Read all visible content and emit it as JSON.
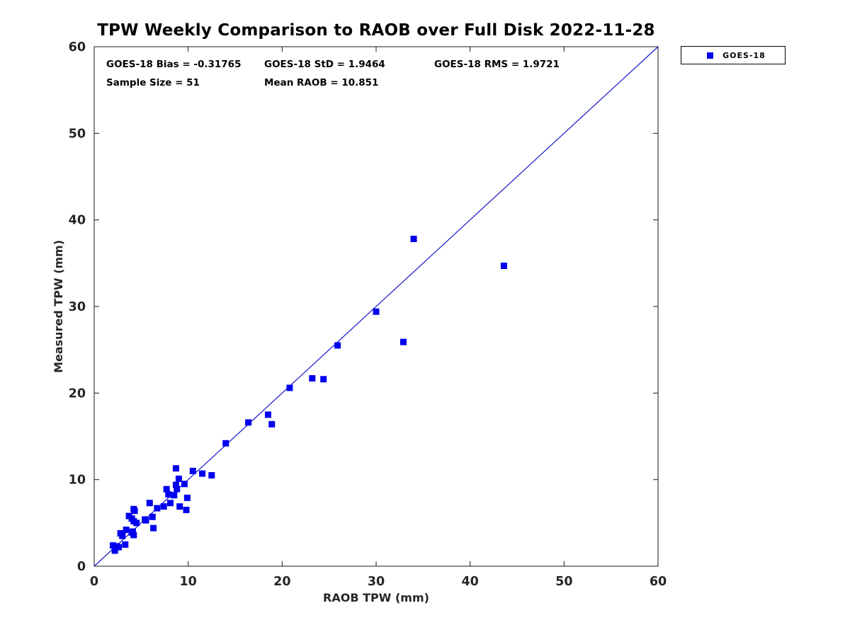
{
  "figure": {
    "title": "TPW Weekly Comparison to RAOB over Full Disk 2022-11-28",
    "background_color": "#ffffff"
  },
  "stats": {
    "bias": "GOES-18 Bias = -0.31765",
    "std": "GOES-18 StD = 1.9464",
    "rms": "GOES-18 RMS = 1.9721",
    "sample_size": "Sample Size = 51",
    "mean_raob": "Mean RAOB = 10.851"
  },
  "legend": {
    "position": "outside-top-right",
    "items": [
      {
        "label": "GOES-18",
        "marker": "square",
        "color": "#0000ee"
      }
    ]
  },
  "colors": {
    "marker": "#0000ee",
    "reference_line": "#1515cc",
    "axis": "#1a1a1a",
    "tick_text": "#262626"
  },
  "chart_data": {
    "type": "scatter",
    "title": "TPW Weekly Comparison to RAOB over Full Disk 2022-11-28",
    "xlabel": "RAOB TPW (mm)",
    "ylabel": "Measured TPW (mm)",
    "xlim": [
      0,
      60
    ],
    "ylim": [
      0,
      60
    ],
    "xticks": [
      0,
      10,
      20,
      30,
      40,
      50,
      60
    ],
    "yticks": [
      0,
      10,
      20,
      30,
      40,
      50,
      60
    ],
    "grid": false,
    "box": true,
    "tick_direction": "in",
    "legend_position": "outside-top-right",
    "reference_line": {
      "type": "identity",
      "from": [
        0,
        0
      ],
      "to": [
        60,
        60
      ]
    },
    "series": [
      {
        "name": "GOES-18",
        "marker": "square",
        "color": "#0000ee",
        "points": [
          [
            2.0,
            2.4
          ],
          [
            2.2,
            1.8
          ],
          [
            2.4,
            2.3
          ],
          [
            2.6,
            2.2
          ],
          [
            3.3,
            2.5
          ],
          [
            2.8,
            3.8
          ],
          [
            3.0,
            3.5
          ],
          [
            3.4,
            4.2
          ],
          [
            4.0,
            3.9
          ],
          [
            4.2,
            3.6
          ],
          [
            4.1,
            4.0
          ],
          [
            3.7,
            5.8
          ],
          [
            4.0,
            5.5
          ],
          [
            4.2,
            5.2
          ],
          [
            4.5,
            5.0
          ],
          [
            4.2,
            6.6
          ],
          [
            4.3,
            6.4
          ],
          [
            5.4,
            5.4
          ],
          [
            5.5,
            5.3
          ],
          [
            6.2,
            5.7
          ],
          [
            6.3,
            4.4
          ],
          [
            5.9,
            7.3
          ],
          [
            6.7,
            6.7
          ],
          [
            7.4,
            6.9
          ],
          [
            8.1,
            7.3
          ],
          [
            9.1,
            6.9
          ],
          [
            9.8,
            6.5
          ],
          [
            7.7,
            8.9
          ],
          [
            7.9,
            8.3
          ],
          [
            8.5,
            8.2
          ],
          [
            9.9,
            7.9
          ],
          [
            8.7,
            9.4
          ],
          [
            8.8,
            8.9
          ],
          [
            9.0,
            10.1
          ],
          [
            9.6,
            9.5
          ],
          [
            8.7,
            11.3
          ],
          [
            10.5,
            11.0
          ],
          [
            11.5,
            10.7
          ],
          [
            12.5,
            10.5
          ],
          [
            14.0,
            14.2
          ],
          [
            16.4,
            16.6
          ],
          [
            18.5,
            17.5
          ],
          [
            18.9,
            16.4
          ],
          [
            20.8,
            20.6
          ],
          [
            23.2,
            21.7
          ],
          [
            24.4,
            21.6
          ],
          [
            25.9,
            25.5
          ],
          [
            30.0,
            29.4
          ],
          [
            32.9,
            25.9
          ],
          [
            34.0,
            37.8
          ],
          [
            43.6,
            34.7
          ]
        ]
      }
    ]
  }
}
